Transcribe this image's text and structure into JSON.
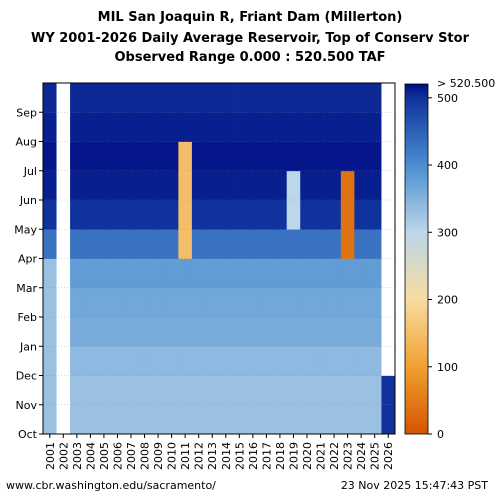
{
  "header": {
    "line1": "MIL San Joaquin R, Friant Dam (Millerton)",
    "line2": "WY 2001-2026 Daily Average Reservoir, Top of Conserv Stor",
    "line3": "Observed Range 0.000 : 520.500 TAF"
  },
  "footer": {
    "url": "www.cbr.washington.edu/sacramento/",
    "timestamp": "23 Nov 2025 15:47:43 PST"
  },
  "chart_data": {
    "type": "heatmap",
    "x": [
      "2001",
      "2002",
      "2003",
      "2004",
      "2005",
      "2006",
      "2007",
      "2008",
      "2009",
      "2010",
      "2011",
      "2012",
      "2013",
      "2014",
      "2015",
      "2016",
      "2017",
      "2018",
      "2019",
      "2020",
      "2021",
      "2022",
      "2023",
      "2024",
      "2025",
      "2026"
    ],
    "y": [
      "Oct",
      "Nov",
      "Dec",
      "Jan",
      "Feb",
      "Mar",
      "Apr",
      "May",
      "Jun",
      "Jul",
      "Aug",
      "Sep"
    ],
    "colorbar": {
      "ticks": [
        "0",
        "100",
        "200",
        "300",
        "400",
        "500"
      ],
      "max_label": "> 520.500",
      "range": [
        0,
        520.5
      ],
      "colors": [
        "#d45500",
        "#f0a030",
        "#f8dca0",
        "#bcd6ea",
        "#4a8ed0",
        "#10329c",
        "#000c82"
      ]
    },
    "typical_storage_TAF": {
      "Oct": 330,
      "Nov": 330,
      "Dec": 340,
      "Jan": 360,
      "Feb": 365,
      "Mar": 380,
      "Apr": 430,
      "May": 500,
      "Jun": 510,
      "Jul": 515,
      "Aug": 510,
      "Sep": 505
    },
    "notable_values_TAF": [
      {
        "year": "2011",
        "months": [
          "Apr",
          "May",
          "Jun",
          "Jul"
        ],
        "value": 150
      },
      {
        "year": "2023",
        "months": [
          "Apr",
          "May",
          "Jun"
        ],
        "value": 40
      },
      {
        "year": "2019",
        "months": [
          "May",
          "Jun"
        ],
        "value": 300
      },
      {
        "year": "2001",
        "months": [
          "Oct",
          "Nov",
          "Dec",
          "Jan",
          "Feb",
          "Mar"
        ],
        "value": 330
      },
      {
        "year": "2026",
        "months": [
          "Oct",
          "Nov"
        ],
        "value": 500
      }
    ],
    "missing": [
      {
        "year": "2002",
        "months": [
          "Oct",
          "Nov",
          "Dec",
          "Jan",
          "Feb",
          "Mar",
          "Apr",
          "May",
          "Jun",
          "Jul",
          "Aug",
          "Sep"
        ]
      },
      {
        "year": "2026",
        "months": [
          "Dec",
          "Jan",
          "Feb",
          "Mar",
          "Apr",
          "May",
          "Jun",
          "Jul",
          "Aug",
          "Sep"
        ]
      }
    ],
    "grid": true
  }
}
